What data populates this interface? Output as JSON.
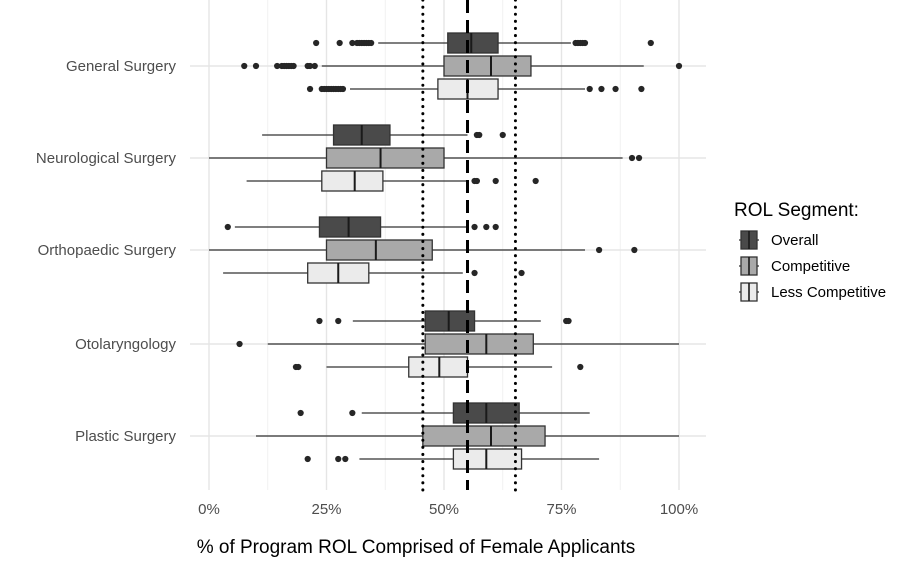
{
  "chart_data": {
    "type": "boxplot",
    "orientation": "horizontal",
    "xlabel": "% of Program ROL Comprised of Female Applicants",
    "ylabel": "",
    "xlim": [
      0,
      1.05
    ],
    "x_ticks": [
      0,
      0.25,
      0.5,
      0.75,
      1.0
    ],
    "x_tick_labels": [
      "0%",
      "25%",
      "50%",
      "75%",
      "100%"
    ],
    "grid": true,
    "legend": {
      "title": "ROL Segment:",
      "placement": "right",
      "items": [
        {
          "name": "Overall",
          "color": "#4a4a4a"
        },
        {
          "name": "Competitive",
          "color": "#a9a9a9"
        },
        {
          "name": "Less Competitive",
          "color": "#ebebeb"
        }
      ]
    },
    "reference_lines": [
      {
        "style": "dashed",
        "x": 0.55
      },
      {
        "style": "dotted",
        "x": 0.455
      },
      {
        "style": "dotted",
        "x": 0.652
      }
    ],
    "categories": [
      "General Surgery",
      "Neurological Surgery",
      "Orthopaedic Surgery",
      "Otolaryngology",
      "Plastic Surgery"
    ],
    "series": [
      {
        "name": "Overall",
        "color": "#4a4a4a",
        "boxes": [
          {
            "whisker_low": 0.36,
            "q1": 0.508,
            "median": 0.558,
            "q3": 0.615,
            "whisker_high": 0.77,
            "outliers": [
              0.228,
              0.278,
              0.305,
              0.315,
              0.32,
              0.325,
              0.33,
              0.335,
              0.34,
              0.345,
              0.78,
              0.785,
              0.79,
              0.795,
              0.8,
              0.94
            ]
          },
          {
            "whisker_low": 0.113,
            "q1": 0.265,
            "median": 0.325,
            "q3": 0.385,
            "whisker_high": 0.55,
            "outliers": [
              0.57,
              0.575,
              0.625
            ]
          },
          {
            "whisker_low": 0.055,
            "q1": 0.235,
            "median": 0.297,
            "q3": 0.365,
            "whisker_high": 0.55,
            "outliers": [
              0.04,
              0.565,
              0.59,
              0.61
            ]
          },
          {
            "whisker_low": 0.306,
            "q1": 0.46,
            "median": 0.51,
            "q3": 0.565,
            "whisker_high": 0.706,
            "outliers": [
              0.235,
              0.275,
              0.76,
              0.765
            ]
          },
          {
            "whisker_low": 0.325,
            "q1": 0.52,
            "median": 0.59,
            "q3": 0.66,
            "whisker_high": 0.81,
            "outliers": [
              0.195,
              0.305
            ]
          }
        ]
      },
      {
        "name": "Competitive",
        "color": "#a9a9a9",
        "boxes": [
          {
            "whisker_low": 0.24,
            "q1": 0.5,
            "median": 0.6,
            "q3": 0.685,
            "whisker_high": 0.925,
            "outliers": [
              0.075,
              0.1,
              0.145,
              0.155,
              0.16,
              0.165,
              0.17,
              0.175,
              0.18,
              0.21,
              0.215,
              0.225,
              1.0
            ]
          },
          {
            "whisker_low": 0.0,
            "q1": 0.25,
            "median": 0.365,
            "q3": 0.5,
            "whisker_high": 0.88,
            "outliers": [
              0.9,
              0.915
            ]
          },
          {
            "whisker_low": 0.0,
            "q1": 0.25,
            "median": 0.355,
            "q3": 0.475,
            "whisker_high": 0.8,
            "outliers": [
              0.83,
              0.905
            ]
          },
          {
            "whisker_low": 0.125,
            "q1": 0.46,
            "median": 0.59,
            "q3": 0.69,
            "whisker_high": 1.0,
            "outliers": [
              0.065
            ]
          },
          {
            "whisker_low": 0.1,
            "q1": 0.455,
            "median": 0.6,
            "q3": 0.715,
            "whisker_high": 1.0,
            "outliers": []
          }
        ]
      },
      {
        "name": "Less Competitive",
        "color": "#ebebeb",
        "boxes": [
          {
            "whisker_low": 0.3,
            "q1": 0.487,
            "median": 0.55,
            "q3": 0.615,
            "whisker_high": 0.8,
            "outliers": [
              0.215,
              0.24,
              0.245,
              0.25,
              0.255,
              0.26,
              0.265,
              0.27,
              0.275,
              0.28,
              0.285,
              0.81,
              0.835,
              0.865,
              0.92
            ]
          },
          {
            "whisker_low": 0.08,
            "q1": 0.24,
            "median": 0.31,
            "q3": 0.37,
            "whisker_high": 0.55,
            "outliers": [
              0.565,
              0.57,
              0.61,
              0.695
            ]
          },
          {
            "whisker_low": 0.03,
            "q1": 0.21,
            "median": 0.275,
            "q3": 0.34,
            "whisker_high": 0.54,
            "outliers": [
              0.565,
              0.665
            ]
          },
          {
            "whisker_low": 0.25,
            "q1": 0.425,
            "median": 0.49,
            "q3": 0.55,
            "whisker_high": 0.73,
            "outliers": [
              0.185,
              0.19,
              0.79
            ]
          },
          {
            "whisker_low": 0.32,
            "q1": 0.52,
            "median": 0.59,
            "q3": 0.665,
            "whisker_high": 0.83,
            "outliers": [
              0.21,
              0.275,
              0.29
            ]
          }
        ]
      }
    ]
  }
}
